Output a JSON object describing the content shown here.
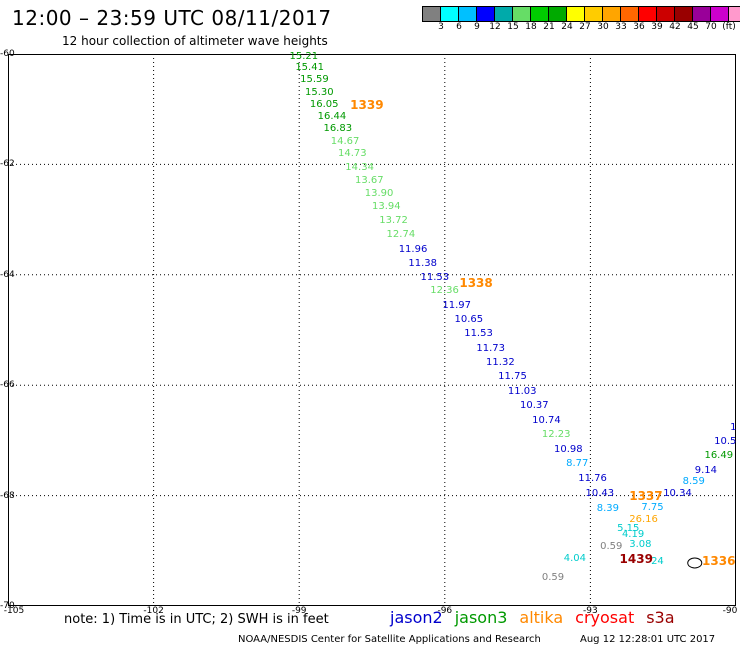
{
  "header": {
    "title": "12:00 – 23:59 UTC 08/11/2017",
    "subtitle": "12 hour collection of altimeter wave heights"
  },
  "colorbar": {
    "colors": [
      "#808080",
      "#00ffff",
      "#00c0ff",
      "#0000ff",
      "#00aaaa",
      "#66dd66",
      "#00cc00",
      "#00aa00",
      "#ffff00",
      "#ffcc00",
      "#ffa500",
      "#ff6600",
      "#ff0000",
      "#cc0000",
      "#990000",
      "#990099",
      "#cc00cc",
      "#ff99cc",
      "#000000"
    ],
    "labels": [
      "3",
      "6",
      "9",
      "12",
      "15",
      "18",
      "21",
      "24",
      "27",
      "30",
      "33",
      "36",
      "39",
      "42",
      "45",
      "70"
    ],
    "unit": "(ft)"
  },
  "axes": {
    "lat_labels": [
      "-60",
      "-62",
      "-64",
      "-66",
      "-68",
      "-70"
    ],
    "lon_labels": [
      "-105",
      "-102",
      "-99",
      "-96",
      "-93",
      "-90"
    ]
  },
  "waves": [
    {
      "text": "15.21",
      "color": "#009900",
      "lat": -60.05,
      "lon": -99.2
    },
    {
      "text": "15.41",
      "color": "#009900",
      "lat": -60.25,
      "lon": -99.08
    },
    {
      "text": "15.59",
      "color": "#009900",
      "lat": -60.48,
      "lon": -98.98
    },
    {
      "text": "15.30",
      "color": "#009900",
      "lat": -60.7,
      "lon": -98.88
    },
    {
      "text": "16.05",
      "color": "#009900",
      "lat": -60.92,
      "lon": -98.78
    },
    {
      "text": "16.44",
      "color": "#009900",
      "lat": -61.14,
      "lon": -98.62
    },
    {
      "text": "16.83",
      "color": "#009900",
      "lat": -61.36,
      "lon": -98.5
    },
    {
      "text": "14.67",
      "color": "#66dd66",
      "lat": -61.6,
      "lon": -98.35
    },
    {
      "text": "14.73",
      "color": "#66dd66",
      "lat": -61.82,
      "lon": -98.2
    },
    {
      "text": "14.34",
      "color": "#66dd66",
      "lat": -62.06,
      "lon": -98.05
    },
    {
      "text": "13.67",
      "color": "#66dd66",
      "lat": -62.3,
      "lon": -97.85
    },
    {
      "text": "13.90",
      "color": "#66dd66",
      "lat": -62.54,
      "lon": -97.65
    },
    {
      "text": "13.94",
      "color": "#66dd66",
      "lat": -62.78,
      "lon": -97.5
    },
    {
      "text": "13.72",
      "color": "#66dd66",
      "lat": -63.02,
      "lon": -97.35
    },
    {
      "text": "12.74",
      "color": "#66dd66",
      "lat": -63.27,
      "lon": -97.2
    },
    {
      "text": "11.96",
      "color": "#0000cc",
      "lat": -63.55,
      "lon": -96.95
    },
    {
      "text": "11.38",
      "color": "#0000cc",
      "lat": -63.8,
      "lon": -96.75
    },
    {
      "text": "11.53",
      "color": "#0000cc",
      "lat": -64.06,
      "lon": -96.5
    },
    {
      "text": "12.36",
      "color": "#66dd66",
      "lat": -64.3,
      "lon": -96.3
    },
    {
      "text": "11.97",
      "color": "#0000cc",
      "lat": -64.56,
      "lon": -96.05
    },
    {
      "text": "10.65",
      "color": "#0000cc",
      "lat": -64.82,
      "lon": -95.8
    },
    {
      "text": "11.53",
      "color": "#0000cc",
      "lat": -65.08,
      "lon": -95.6
    },
    {
      "text": "11.73",
      "color": "#0000cc",
      "lat": -65.34,
      "lon": -95.35
    },
    {
      "text": "11.32",
      "color": "#0000cc",
      "lat": -65.6,
      "lon": -95.15
    },
    {
      "text": "11.75",
      "color": "#0000cc",
      "lat": -65.86,
      "lon": -94.9
    },
    {
      "text": "11.03",
      "color": "#0000cc",
      "lat": -66.12,
      "lon": -94.7
    },
    {
      "text": "10.37",
      "color": "#0000cc",
      "lat": -66.38,
      "lon": -94.45
    },
    {
      "text": "10.74",
      "color": "#0000cc",
      "lat": -66.64,
      "lon": -94.2
    },
    {
      "text": "12.23",
      "color": "#66dd66",
      "lat": -66.9,
      "lon": -94.0
    },
    {
      "text": "10.98",
      "color": "#0000cc",
      "lat": -67.17,
      "lon": -93.75
    },
    {
      "text": "8.77",
      "color": "#00aaff",
      "lat": -67.43,
      "lon": -93.5
    },
    {
      "text": "11.76",
      "color": "#0000cc",
      "lat": -67.7,
      "lon": -93.25
    },
    {
      "text": "10.43",
      "color": "#0000cc",
      "lat": -67.97,
      "lon": -93.1
    },
    {
      "text": "8.39",
      "color": "#00aaff",
      "lat": -68.24,
      "lon": -92.87
    },
    {
      "text": "10.34",
      "color": "#0000cc",
      "lat": -67.97,
      "lon": -91.5
    },
    {
      "text": "7.75",
      "color": "#00aaff",
      "lat": -68.22,
      "lon": -91.95
    },
    {
      "text": "9.14",
      "color": "#0000cc",
      "lat": -67.55,
      "lon": -90.85
    },
    {
      "text": "8.59",
      "color": "#00aaff",
      "lat": -67.76,
      "lon": -91.1
    },
    {
      "text": "16.49",
      "color": "#009900",
      "lat": -67.28,
      "lon": -90.65
    },
    {
      "text": "10.5",
      "color": "#0000cc",
      "lat": -67.02,
      "lon": -90.45
    },
    {
      "text": "1",
      "color": "#0000cc",
      "lat": -66.78,
      "lon": -90.12
    },
    {
      "text": "26.16",
      "color": "#ffa500",
      "lat": -68.45,
      "lon": -92.2
    },
    {
      "text": "5.15",
      "color": "#00cccc",
      "lat": -68.6,
      "lon": -92.45
    },
    {
      "text": "4.19",
      "color": "#00cccc",
      "lat": -68.72,
      "lon": -92.35
    },
    {
      "text": "3.08",
      "color": "#00cccc",
      "lat": -68.9,
      "lon": -92.2
    },
    {
      "text": "0.59",
      "color": "#808080",
      "lat": -68.94,
      "lon": -92.8
    },
    {
      "text": "4.04",
      "color": "#00cccc",
      "lat": -69.15,
      "lon": -93.55
    },
    {
      "text": "24",
      "color": "#00cccc",
      "lat": -69.2,
      "lon": -91.75
    },
    {
      "text": "0.59",
      "color": "#808080",
      "lat": -69.5,
      "lon": -94.0
    }
  ],
  "times": [
    {
      "text": "1339",
      "color": "#ff8800",
      "lat": -60.92,
      "lon": -97.95
    },
    {
      "text": "1338",
      "color": "#ff8800",
      "lat": -64.15,
      "lon": -95.7
    },
    {
      "text": "1337",
      "color": "#ff8800",
      "lat": -68.0,
      "lon": -92.2
    },
    {
      "text": "1439",
      "color": "#990000",
      "lat": -69.15,
      "lon": -92.4
    },
    {
      "text": "1336",
      "color": "#ff8800",
      "lat": -69.18,
      "lon": -90.7
    }
  ],
  "note": "note: 1) Time is in UTC; 2) SWH is in feet",
  "legend": [
    {
      "text": "jason2",
      "color": "#0000cc"
    },
    {
      "text": "jason3",
      "color": "#009900"
    },
    {
      "text": "altika",
      "color": "#ff8800"
    },
    {
      "text": "cryosat",
      "color": "#ff0000"
    },
    {
      "text": "s3a",
      "color": "#990000"
    }
  ],
  "footer": {
    "credit": "NOAA/NESDIS Center for Satellite Applications and Research",
    "timestamp": "Aug 12 12:28:01 UTC 2017"
  }
}
